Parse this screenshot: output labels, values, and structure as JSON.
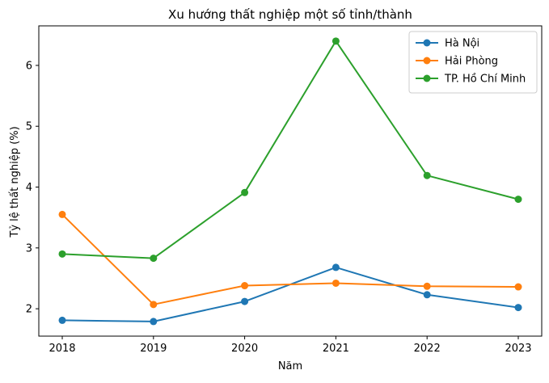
{
  "chart_data": {
    "type": "line",
    "title": "Xu hướng thất nghiệp một số tỉnh/thành",
    "xlabel": "Năm",
    "ylabel": "Tỷ lệ thất nghiệp (%)",
    "x": [
      "2018",
      "2019",
      "2020",
      "2021",
      "2022",
      "2023"
    ],
    "ylim": [
      1.55,
      6.65
    ],
    "yticks": [
      "2",
      "3",
      "4",
      "5",
      "6"
    ],
    "grid": false,
    "legend_position": "top-right",
    "series": [
      {
        "name": "Hà Nội",
        "color": "#1f77b4",
        "values": [
          1.81,
          1.79,
          2.12,
          2.68,
          2.23,
          2.02
        ]
      },
      {
        "name": "Hải Phòng",
        "color": "#ff7f0e",
        "values": [
          3.55,
          2.07,
          2.38,
          2.42,
          2.37,
          2.36
        ]
      },
      {
        "name": "TP. Hồ Chí Minh",
        "color": "#2ca02c",
        "values": [
          2.9,
          2.83,
          3.91,
          6.4,
          4.19,
          3.8
        ]
      }
    ]
  }
}
